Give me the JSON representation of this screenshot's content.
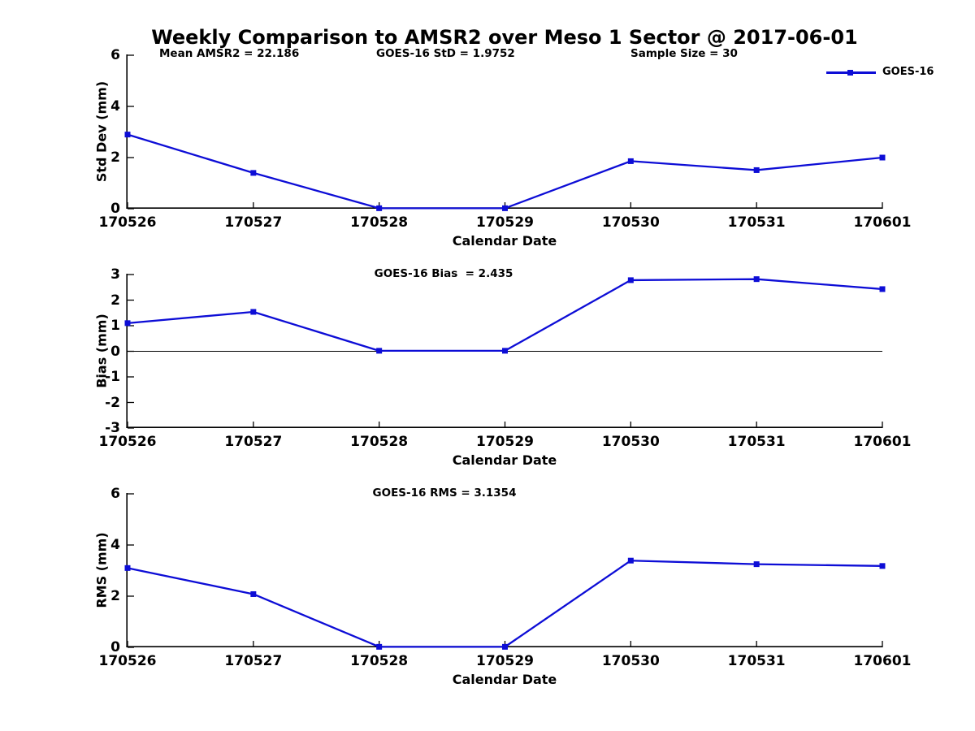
{
  "page_title": "Weekly Comparison to AMSR2 over Meso 1 Sector @ 2017-06-01",
  "header_stats": {
    "mean_amsr2": "Mean AMSR2 = 22.186",
    "goes16_std": "GOES-16 StD = 1.9752",
    "sample_size": "Sample Size = 30"
  },
  "legend": {
    "label": "GOES-16",
    "position": "top-right"
  },
  "colors": {
    "series": "#0d0dd6",
    "axis": "#000000",
    "text": "#000000",
    "background": "#ffffff"
  },
  "chart_data": [
    {
      "type": "line",
      "title": "",
      "categories": [
        "170526",
        "170527",
        "170528",
        "170529",
        "170530",
        "170531",
        "170601"
      ],
      "series": [
        {
          "name": "GOES-16",
          "color": "#0d0dd6",
          "marker": "square",
          "values": [
            2.9,
            1.4,
            0.02,
            0.02,
            1.86,
            1.51,
            2.0
          ]
        }
      ],
      "xlabel": "Calendar Date",
      "ylabel": "Std Dev (mm)",
      "ylim": [
        0,
        6
      ],
      "yticks": [
        0,
        2,
        4,
        6
      ],
      "zero_line": false,
      "grid": false,
      "legend_position": "top-right-inside"
    },
    {
      "type": "line",
      "title": "GOES-16 Bias  = 2.435",
      "categories": [
        "170526",
        "170527",
        "170528",
        "170529",
        "170530",
        "170531",
        "170601"
      ],
      "series": [
        {
          "name": "GOES-16",
          "color": "#0d0dd6",
          "marker": "square",
          "values": [
            1.1,
            1.54,
            0.02,
            0.02,
            2.78,
            2.82,
            2.43
          ]
        }
      ],
      "xlabel": "Calendar Date",
      "ylabel": "Bias (mm)",
      "ylim": [
        -3,
        3
      ],
      "yticks": [
        -3,
        -2,
        -1,
        0,
        1,
        2,
        3
      ],
      "zero_line": true,
      "grid": false
    },
    {
      "type": "line",
      "title": "GOES-16 RMS = 3.1354",
      "categories": [
        "170526",
        "170527",
        "170528",
        "170529",
        "170530",
        "170531",
        "170601"
      ],
      "series": [
        {
          "name": "GOES-16",
          "color": "#0d0dd6",
          "marker": "square",
          "values": [
            3.1,
            2.08,
            0.02,
            0.02,
            3.39,
            3.25,
            3.18
          ]
        }
      ],
      "xlabel": "Calendar Date",
      "ylabel": "RMS (mm)",
      "ylim": [
        0,
        6
      ],
      "yticks": [
        0,
        2,
        4,
        6
      ],
      "zero_line": false,
      "grid": false
    }
  ]
}
